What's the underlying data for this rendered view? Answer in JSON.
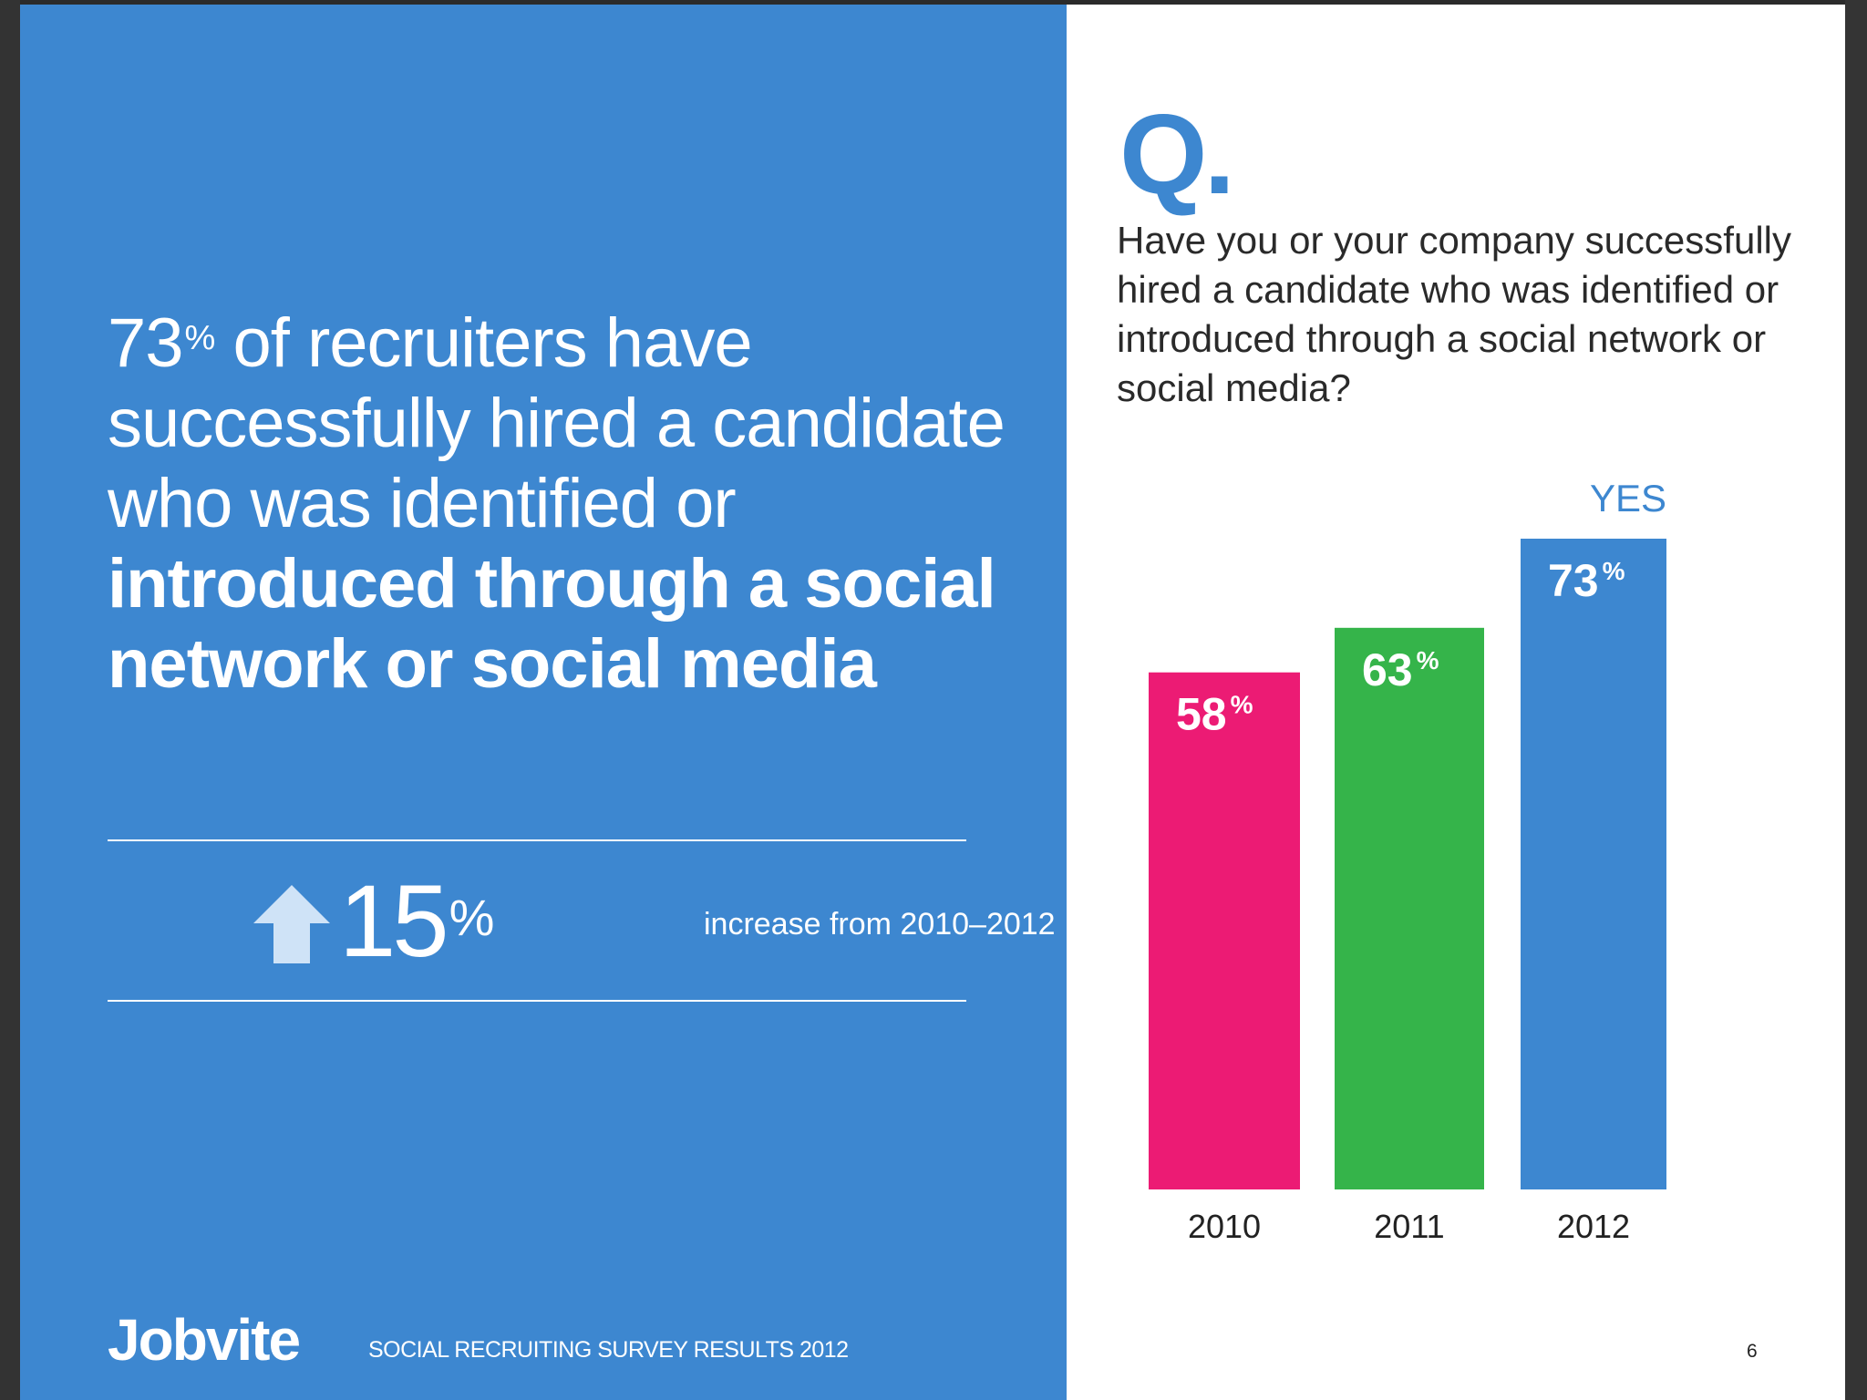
{
  "headline": {
    "stat": "73",
    "stat_sup": "%",
    "text_regular": " of recruiters have successfully hired a candidate who was identified or ",
    "text_bold": "introduced through a social network or social media"
  },
  "increase": {
    "value": "15",
    "unit": "%",
    "label": "increase from 2010–2012"
  },
  "footer": {
    "brand": "Jobvite",
    "title": "SOCIAL RECRUITING SURVEY RESULTS 2012",
    "page_number": "6"
  },
  "question": {
    "mark": "Q.",
    "text": "Have you or your company successfully hired a candidate who was identified or introduced through a social network or social media?"
  },
  "colors": {
    "brand_blue": "#3d87d0",
    "bar_2010": "#ec1b74",
    "bar_2011": "#35b44a",
    "bar_2012": "#3d87d0"
  },
  "chart_data": {
    "type": "bar",
    "categories": [
      "2010",
      "2011",
      "2012"
    ],
    "series": [
      {
        "name": "YES",
        "values": [
          58,
          63,
          73
        ]
      }
    ],
    "value_labels": [
      "58",
      "63",
      "73"
    ],
    "value_unit": "%",
    "colors": [
      "#ec1b74",
      "#35b44a",
      "#3d87d0"
    ],
    "legend": "YES",
    "ylim": [
      0,
      73
    ],
    "grid": false
  }
}
